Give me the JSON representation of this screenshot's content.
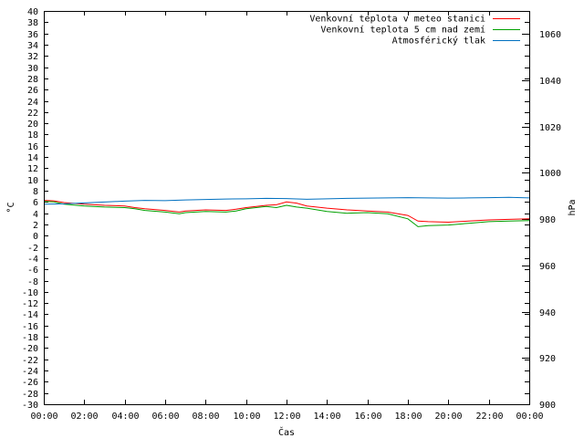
{
  "chart_data": {
    "type": "line",
    "xlabel": "Čas",
    "ylabel": "°C",
    "y2label": "hPa",
    "x_ticks": [
      "00:00",
      "02:00",
      "04:00",
      "06:00",
      "08:00",
      "10:00",
      "12:00",
      "14:00",
      "16:00",
      "18:00",
      "20:00",
      "22:00",
      "00:00"
    ],
    "x_range_hours": [
      0,
      24
    ],
    "ylim": [
      -30,
      40
    ],
    "y_ticks": [
      -30,
      -28,
      -26,
      -24,
      -22,
      -20,
      -18,
      -16,
      -14,
      -12,
      -10,
      -8,
      -6,
      -4,
      -2,
      0,
      2,
      4,
      6,
      8,
      10,
      12,
      14,
      16,
      18,
      20,
      22,
      24,
      26,
      28,
      30,
      32,
      34,
      36,
      38,
      40
    ],
    "y2lim": [
      900,
      1070
    ],
    "y2_ticks": [
      900,
      920,
      940,
      960,
      980,
      1000,
      1020,
      1040,
      1060
    ],
    "legend_position": "top-right",
    "grid": false,
    "series": [
      {
        "name": "Venkovní teplota v meteo stanici",
        "color": "#ff0000",
        "axis": "left",
        "x": [
          0,
          0.5,
          1,
          2,
          3,
          4,
          4.5,
          5,
          6,
          6.7,
          7,
          8,
          9,
          9.5,
          10,
          11,
          11.5,
          12,
          12.5,
          13,
          14,
          15,
          16,
          17,
          18,
          18.5,
          19,
          20,
          21,
          22,
          23,
          24
        ],
        "y": [
          6.3,
          6.2,
          5.9,
          5.6,
          5.4,
          5.3,
          5.0,
          4.8,
          4.5,
          4.2,
          4.4,
          4.6,
          4.5,
          4.7,
          5.0,
          5.4,
          5.5,
          6.0,
          5.8,
          5.3,
          4.9,
          4.6,
          4.4,
          4.2,
          3.6,
          2.6,
          2.5,
          2.4,
          2.6,
          2.8,
          2.9,
          3.0
        ]
      },
      {
        "name": "Venkovní teplota 5 cm nad zemí",
        "color": "#00a000",
        "axis": "left",
        "x": [
          0,
          0.5,
          1,
          2,
          3,
          4,
          4.5,
          5,
          6,
          6.7,
          7,
          8,
          9,
          9.5,
          10,
          11,
          11.5,
          12,
          12.5,
          13,
          14,
          15,
          16,
          17,
          18,
          18.5,
          19,
          20,
          21,
          22,
          23,
          24
        ],
        "y": [
          6.1,
          6.0,
          5.6,
          5.3,
          5.1,
          5.0,
          4.8,
          4.5,
          4.2,
          3.9,
          4.1,
          4.3,
          4.2,
          4.4,
          4.8,
          5.2,
          5.0,
          5.4,
          5.1,
          4.9,
          4.3,
          4.0,
          4.1,
          3.9,
          3.0,
          1.6,
          1.8,
          1.9,
          2.2,
          2.5,
          2.6,
          2.7
        ]
      },
      {
        "name": "Atmosférický tlak",
        "color": "#0070c0",
        "axis": "right",
        "x": [
          0,
          1,
          2,
          3,
          4,
          5,
          6,
          7,
          8,
          9,
          10,
          11,
          12,
          13,
          14,
          15,
          16,
          17,
          18,
          19,
          20,
          21,
          22,
          23,
          24
        ],
        "y": [
          986.5,
          986.6,
          987.0,
          987.4,
          987.8,
          988.1,
          988.0,
          988.3,
          988.5,
          988.7,
          988.8,
          989.0,
          988.9,
          988.6,
          988.8,
          989.0,
          989.1,
          989.2,
          989.3,
          989.2,
          989.1,
          989.2,
          989.3,
          989.4,
          989.2
        ]
      }
    ]
  }
}
